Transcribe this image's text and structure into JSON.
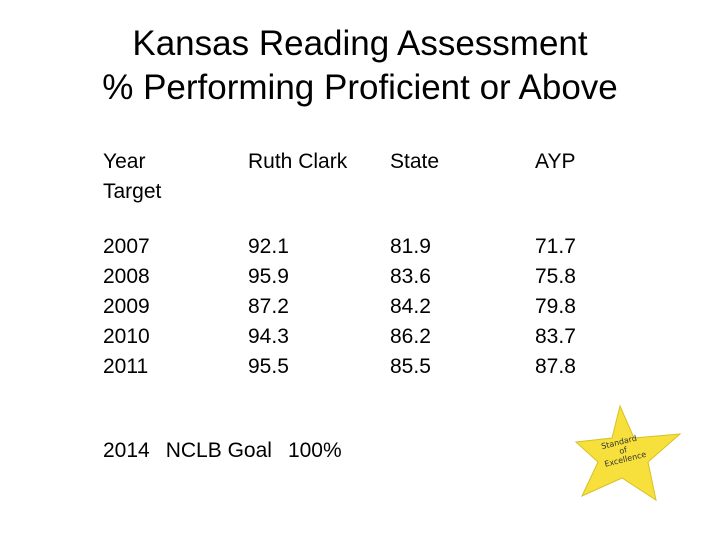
{
  "title": {
    "line1": "Kansas Reading Assessment",
    "line2": "% Performing Proficient or Above"
  },
  "table": {
    "headers": {
      "year": "Year",
      "target": "Target",
      "school": "Ruth Clark",
      "state": "State",
      "ayp": "AYP"
    },
    "years": [
      "2007",
      "2008",
      "2009",
      "2010",
      "2011"
    ],
    "school": [
      "92.1",
      "95.9",
      "87.2",
      "94.3",
      "95.5"
    ],
    "state": [
      "81.9",
      "83.6",
      "84.2",
      "86.2",
      "85.5"
    ],
    "ayp": [
      "71.7",
      "75.8",
      "79.8",
      "83.7",
      "87.8"
    ]
  },
  "goal": {
    "year": "2014",
    "label": "NCLB Goal",
    "value": "100%"
  },
  "badge": {
    "line1": "Standard",
    "line2": "of",
    "line3": "Excellence",
    "color": "#f7e03c"
  }
}
